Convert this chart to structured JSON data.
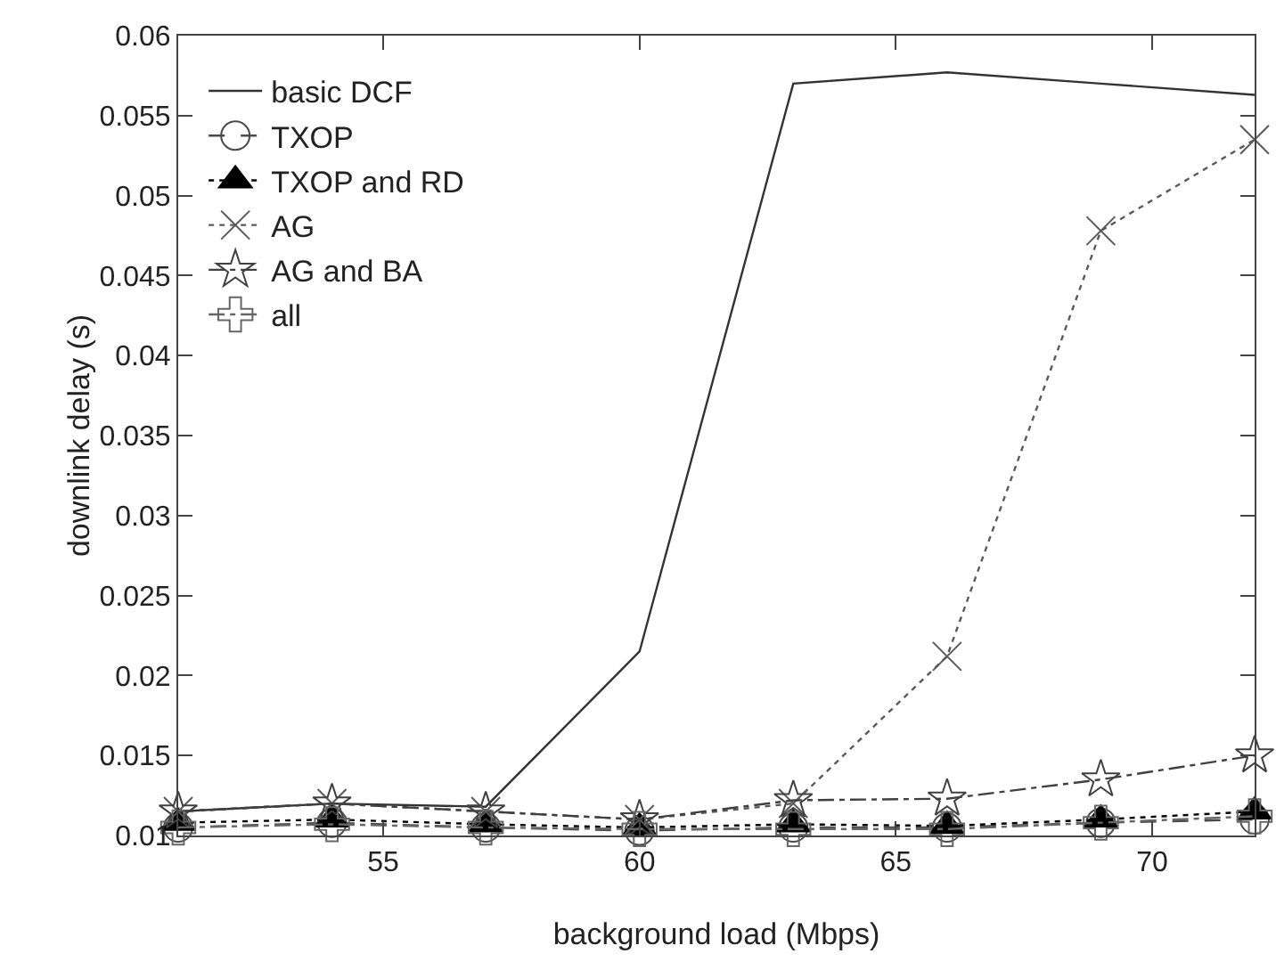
{
  "chart_data": {
    "type": "line",
    "xlabel": "background load (Mbps)",
    "ylabel": "downlink delay (s)",
    "x": [
      51,
      54,
      57,
      60,
      63,
      66,
      69,
      72
    ],
    "xlim": [
      51,
      72
    ],
    "xticks": [
      55,
      60,
      65,
      70
    ],
    "ylim": [
      0.01,
      0.06
    ],
    "yticks": [
      0.01,
      0.015,
      0.02,
      0.025,
      0.03,
      0.035,
      0.04,
      0.045,
      0.05,
      0.055,
      0.06
    ],
    "grid": false,
    "legend": "top left",
    "series": [
      {
        "name": "basic DCF",
        "color": "#333333",
        "marker": "none",
        "line_style": "solid",
        "values": [
          0.0115,
          0.012,
          0.0118,
          0.0215,
          0.057,
          0.0577,
          0.057,
          0.0563
        ]
      },
      {
        "name": "TXOP",
        "color": "#4a4a4a",
        "marker": "circle",
        "line_style": "dashed",
        "values": [
          0.0105,
          0.0108,
          0.0105,
          0.0103,
          0.0105,
          0.0105,
          0.0108,
          0.011
        ]
      },
      {
        "name": "TXOP and RD",
        "color": "#000000",
        "marker": "triangle",
        "line_style": "dotted",
        "values": [
          0.0108,
          0.011,
          0.0107,
          0.0105,
          0.0107,
          0.0106,
          0.011,
          0.0115
        ]
      },
      {
        "name": "AG",
        "color": "#5a5a5a",
        "marker": "x",
        "line_style": "dotted",
        "values": [
          0.0115,
          0.012,
          0.0115,
          0.011,
          0.012,
          0.0212,
          0.0478,
          0.0535
        ]
      },
      {
        "name": "AG and BA",
        "color": "#404040",
        "marker": "star",
        "line_style": "dashdot",
        "values": [
          0.0115,
          0.012,
          0.0115,
          0.011,
          0.0122,
          0.0123,
          0.0135,
          0.015
        ]
      },
      {
        "name": "all",
        "color": "#666666",
        "marker": "cross",
        "line_style": "dashdot",
        "values": [
          0.0105,
          0.0107,
          0.0105,
          0.0104,
          0.0104,
          0.0104,
          0.0108,
          0.0112
        ]
      }
    ]
  }
}
